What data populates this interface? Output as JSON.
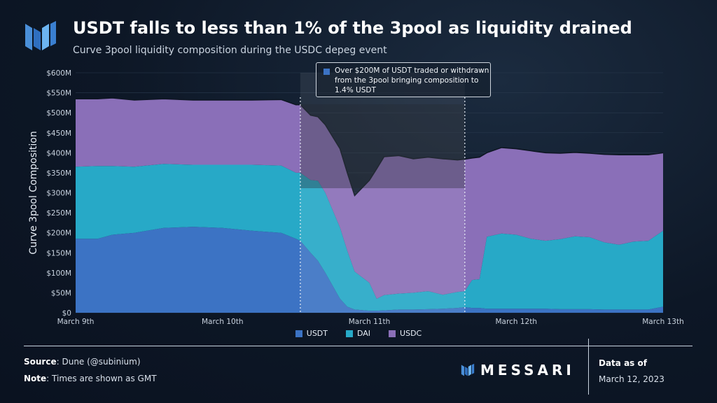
{
  "header": {
    "title": "USDT falls to less than 1% of the 3pool as liquidity drained",
    "subtitle": "Curve 3pool liquidity composition during the USDC depeg event"
  },
  "annotation": {
    "text": "Over $200M of USDT traded or withdrawn from the 3pool bringing composition to 1.4% USDT"
  },
  "footer": {
    "source_label": "Source",
    "source_value": ": Dune (@subinium)",
    "note_label": "Note",
    "note_value": ": Times are shown as GMT",
    "brand": "MESSARI",
    "data_as_of_label": "Data as of",
    "data_as_of_date": "March 12, 2023"
  },
  "colors": {
    "usdt": "#3c73c4",
    "dai": "#27a9c7",
    "usdc": "#8a6fb8",
    "annotation_shade": "#111820"
  },
  "chart_data": {
    "type": "area",
    "stacked": true,
    "title": "USDT falls to less than 1% of the 3pool as liquidity drained",
    "ylabel": "Curve 3pool Composition",
    "xlabel": "",
    "ylim": [
      0,
      600
    ],
    "xlim": [
      0,
      4
    ],
    "y_ticks": [
      "$0",
      "$50M",
      "$100M",
      "$150M",
      "$200M",
      "$250M",
      "$300M",
      "$350M",
      "$400M",
      "$450M",
      "$500M",
      "$550M",
      "$600M"
    ],
    "x_ticks": [
      {
        "x": 0,
        "label": "March 9th"
      },
      {
        "x": 1,
        "label": "March 10th"
      },
      {
        "x": 2,
        "label": "March 11th"
      },
      {
        "x": 3,
        "label": "March 12th"
      },
      {
        "x": 4,
        "label": "March 13th"
      }
    ],
    "highlight_range": [
      1.53,
      2.65
    ],
    "legend": [
      "USDT",
      "DAI",
      "USDC"
    ],
    "x": [
      0,
      0.15,
      0.25,
      0.4,
      0.6,
      0.8,
      1.0,
      1.2,
      1.4,
      1.5,
      1.53,
      1.6,
      1.65,
      1.7,
      1.8,
      1.85,
      1.9,
      2.0,
      2.05,
      2.1,
      2.2,
      2.3,
      2.4,
      2.5,
      2.6,
      2.65,
      2.7,
      2.75,
      2.8,
      2.9,
      3.0,
      3.1,
      3.2,
      3.3,
      3.4,
      3.5,
      3.6,
      3.7,
      3.8,
      3.9,
      4.0
    ],
    "series": [
      {
        "name": "USDT",
        "values": [
          185,
          185,
          195,
          200,
          212,
          215,
          212,
          205,
          200,
          185,
          180,
          150,
          130,
          100,
          35,
          15,
          8,
          5,
          5,
          6,
          8,
          8,
          9,
          10,
          12,
          14,
          12,
          12,
          10,
          10,
          10,
          10,
          10,
          9,
          9,
          9,
          8,
          8,
          8,
          8,
          15
        ]
      },
      {
        "name": "DAI",
        "values": [
          180,
          182,
          172,
          165,
          160,
          155,
          158,
          165,
          168,
          165,
          170,
          182,
          200,
          200,
          178,
          140,
          95,
          70,
          30,
          38,
          40,
          42,
          45,
          35,
          40,
          40,
          70,
          72,
          180,
          188,
          185,
          175,
          170,
          175,
          182,
          180,
          168,
          162,
          170,
          172,
          190
        ]
      },
      {
        "name": "USDC",
        "values": [
          170,
          168,
          170,
          167,
          163,
          162,
          162,
          162,
          165,
          170,
          170,
          162,
          160,
          170,
          197,
          195,
          190,
          256,
          325,
          346,
          345,
          335,
          335,
          340,
          330,
          330,
          305,
          305,
          210,
          215,
          215,
          220,
          220,
          215,
          210,
          210,
          220,
          225,
          217,
          215,
          195
        ]
      }
    ]
  }
}
